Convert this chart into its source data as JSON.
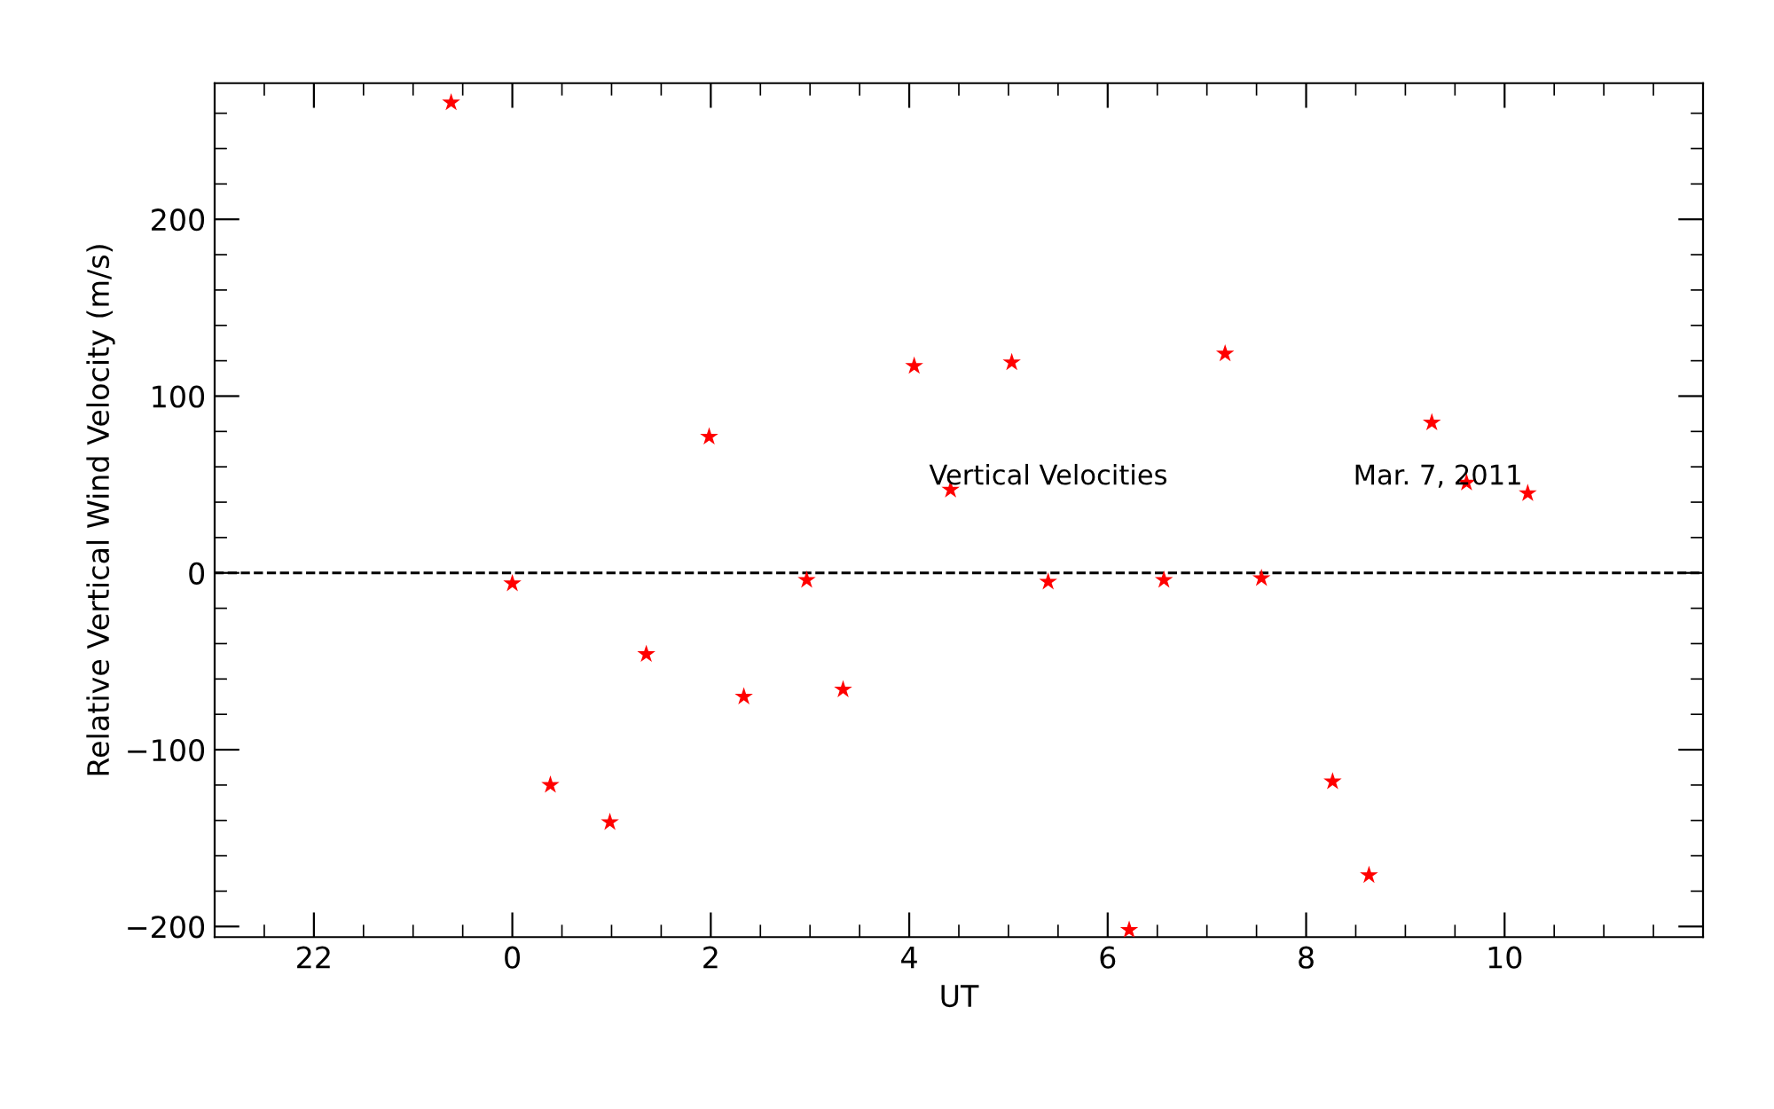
{
  "chart_data": {
    "type": "scatter",
    "xlabel": "UT",
    "ylabel": "Relative Vertical Wind Velocity (m/s)",
    "annotations": [
      "Vertical Velocities",
      "Mar. 7, 2011"
    ],
    "x": [
      "2011-03-06T23:23",
      "2011-03-07T00:00",
      "2011-03-07T00:23",
      "2011-03-07T00:59",
      "2011-03-07T01:21",
      "2011-03-07T01:59",
      "2011-03-07T02:20",
      "2011-03-07T02:58",
      "2011-03-07T03:20",
      "2011-03-07T04:03",
      "2011-03-07T04:25",
      "2011-03-07T05:02",
      "2011-03-07T05:24",
      "2011-03-07T06:13",
      "2011-03-07T06:34",
      "2011-03-07T07:11",
      "2011-03-07T07:33",
      "2011-03-07T08:16",
      "2011-03-07T08:38",
      "2011-03-07T09:16",
      "2011-03-07T09:37",
      "2011-03-07T10:14"
    ],
    "series": [
      {
        "color": "#ff0000",
        "values": [
          266,
          -6,
          -120,
          -141,
          -46,
          77,
          -70,
          -4,
          -66,
          117,
          47,
          119,
          -5,
          -202,
          -4,
          124,
          -3,
          -118,
          -171,
          85,
          51,
          45
        ]
      }
    ],
    "xlim": [
      "2011-03-06T21:00",
      "2011-03-07T12:00"
    ],
    "ylim": [
      -206,
      277
    ],
    "xticks": [
      {
        "value": "2011-03-06T22:00",
        "label": "22"
      },
      {
        "value": "2011-03-07T00:00",
        "label": "0"
      },
      {
        "value": "2011-03-07T02:00",
        "label": "2"
      },
      {
        "value": "2011-03-07T04:00",
        "label": "4"
      },
      {
        "value": "2011-03-07T06:00",
        "label": "6"
      },
      {
        "value": "2011-03-07T08:00",
        "label": "8"
      },
      {
        "value": "2011-03-07T10:00",
        "label": "10"
      }
    ],
    "yticks": [
      {
        "value": -200,
        "label": "−200"
      },
      {
        "value": -100,
        "label": "−100"
      },
      0,
      100,
      200
    ],
    "ref_lines": [
      {
        "axis": "y",
        "value": 0,
        "color": "#000000",
        "line_style": "dashed"
      }
    ],
    "marker": "star",
    "grid": false,
    "legend": false
  }
}
